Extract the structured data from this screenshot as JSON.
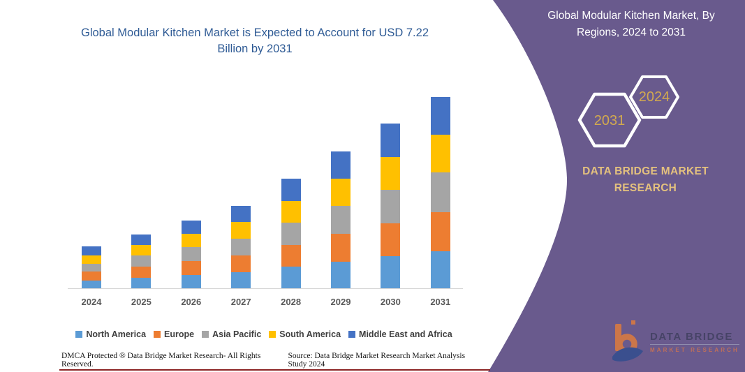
{
  "chart_data": {
    "type": "bar",
    "stacked": true,
    "title": "Global Modular Kitchen Market is Expected to Account for USD 7.22 Billion by 2031",
    "categories": [
      "2024",
      "2025",
      "2026",
      "2027",
      "2028",
      "2029",
      "2030",
      "2031"
    ],
    "series": [
      {
        "name": "North America",
        "color": "#5B9BD5",
        "values": [
          0.3,
          0.4,
          0.5,
          0.61,
          0.81,
          1.01,
          1.21,
          1.4
        ]
      },
      {
        "name": "Europe",
        "color": "#ED7D31",
        "values": [
          0.32,
          0.41,
          0.52,
          0.63,
          0.83,
          1.04,
          1.25,
          1.46
        ]
      },
      {
        "name": "Asia Pacific",
        "color": "#A5A5A5",
        "values": [
          0.31,
          0.42,
          0.53,
          0.64,
          0.84,
          1.05,
          1.26,
          1.5
        ]
      },
      {
        "name": "South America",
        "color": "#FFC000",
        "values": [
          0.31,
          0.4,
          0.51,
          0.62,
          0.82,
          1.03,
          1.24,
          1.42
        ]
      },
      {
        "name": "Middle East and Africa",
        "color": "#4472C4",
        "values": [
          0.33,
          0.41,
          0.5,
          0.61,
          0.83,
          1.02,
          1.24,
          1.44
        ]
      }
    ],
    "totals": [
      1.57,
      2.04,
      2.56,
      3.11,
      4.13,
      5.15,
      6.2,
      7.22
    ],
    "unit": "USD Billion",
    "ylim": [
      0,
      7.5
    ],
    "grid": false,
    "legend_position": "bottom",
    "title_color": "#2F5B95",
    "axis_label_color": "#595959"
  },
  "side_panel": {
    "title": "Global Modular Kitchen Market, By Regions, 2024 to 2031",
    "badge_back": "2031",
    "badge_front": "2024",
    "brand_text": "DATA BRIDGE MARKET RESEARCH",
    "background_color": "#695A8D",
    "badge_text_color": "#D2A94F",
    "brand_text_color": "#E4C17E"
  },
  "logo": {
    "line1": "DATA BRIDGE",
    "line2": "MARKET RESEARCH",
    "glyph_orange": "#E87E36",
    "glyph_blue": "#2E4C8F"
  },
  "footer": {
    "dmca": "DMCA Protected ® Data Bridge Market Research-  All Rights Reserved.",
    "source": "Source: Data Bridge Market Research  Market Analysis Study 2024",
    "underline_color": "#8B2323"
  }
}
